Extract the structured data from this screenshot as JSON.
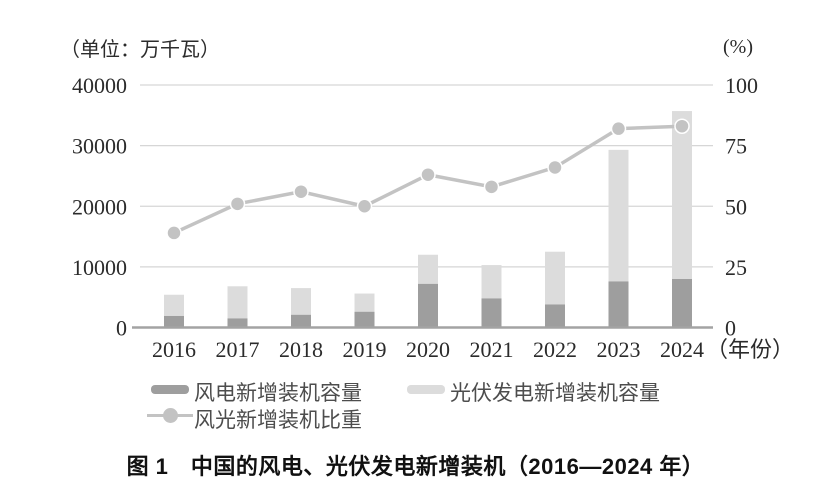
{
  "axes": {
    "left_unit_label": "（单位：万千瓦）",
    "right_unit_label": "(%)",
    "x_suffix_label": "（年份）"
  },
  "legend": {
    "items": [
      {
        "label": "风电新增装机容量",
        "swatch": "bar",
        "color": "#9e9e9e"
      },
      {
        "label": "光伏发电新增装机容量",
        "swatch": "bar",
        "color": "#dcdcdc"
      },
      {
        "label": "风光新增装机比重",
        "swatch": "line-marker",
        "color": "#c3c3c3"
      }
    ]
  },
  "caption": "图 1　中国的风电、光伏发电新增装机（2016—2024 年）",
  "colors": {
    "wind_bar": "#9e9e9e",
    "solar_bar": "#dcdcdc",
    "share_line": "#c3c3c3",
    "gridline": "#d6d6d6",
    "baseline": "#a3a3a3",
    "tick_text": "#2b2b2b"
  },
  "chart_data": {
    "type": "bar",
    "subtype": "stacked-bar + line (dual axis)",
    "title": "图 1　中国的风电、光伏发电新增装机（2016—2024 年）",
    "categories": [
      "2016",
      "2017",
      "2018",
      "2019",
      "2020",
      "2021",
      "2022",
      "2023",
      "2024"
    ],
    "series": [
      {
        "name": "风电新增装机容量",
        "chart": "bar",
        "stack": "capacity",
        "axis": "left",
        "color": "#9e9e9e",
        "values": [
          1900,
          1500,
          2100,
          2600,
          7200,
          4800,
          3800,
          7600,
          8000
        ]
      },
      {
        "name": "光伏发电新增装机容量",
        "chart": "bar",
        "stack": "capacity",
        "axis": "left",
        "color": "#dcdcdc",
        "values": [
          3500,
          5300,
          4400,
          3000,
          4800,
          5500,
          8700,
          21700,
          27700
        ]
      },
      {
        "name": "风光新增装机比重",
        "chart": "line",
        "axis": "right",
        "color": "#c3c3c3",
        "values": [
          39,
          51,
          56,
          50,
          63,
          58,
          66,
          82,
          83
        ]
      }
    ],
    "left_axis": {
      "label": "（单位：万千瓦）",
      "min": 0,
      "max": 40000,
      "ticks": [
        0,
        10000,
        20000,
        30000,
        40000
      ]
    },
    "right_axis": {
      "label": "(%)",
      "min": 0,
      "max": 100,
      "ticks": [
        0,
        25,
        50,
        75,
        100
      ]
    },
    "xlabel": "（年份）",
    "grid": true,
    "legend_position": "bottom"
  }
}
